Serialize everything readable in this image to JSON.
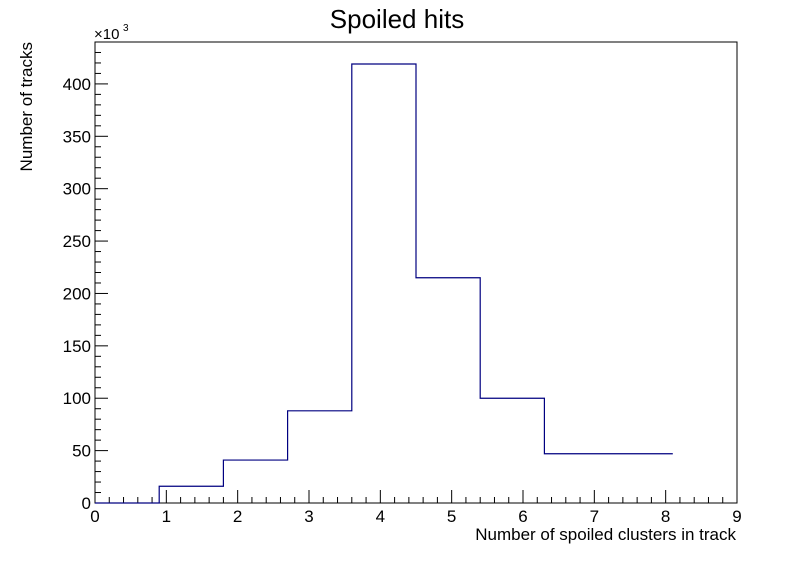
{
  "chart_data": {
    "type": "bar",
    "title": "Spoiled hits",
    "xlabel": "Number of spoiled clusters in track",
    "ylabel": "Number of tracks",
    "y_multiplier": "×10",
    "y_multiplier_exponent": "3",
    "xlim": [
      0,
      9
    ],
    "ylim": [
      0,
      440
    ],
    "x_ticks": [
      0,
      1,
      2,
      3,
      4,
      5,
      6,
      7,
      8,
      9
    ],
    "y_ticks": [
      0,
      50,
      100,
      150,
      200,
      250,
      300,
      350,
      400
    ],
    "bin_edges": [
      0,
      0.9,
      1.8,
      2.7,
      3.6,
      4.5,
      5.4,
      6.3,
      7.2,
      8.1
    ],
    "values": [
      0,
      16,
      41,
      88,
      419,
      215,
      100,
      47,
      47
    ],
    "line_color": "#000080",
    "grid": false
  }
}
